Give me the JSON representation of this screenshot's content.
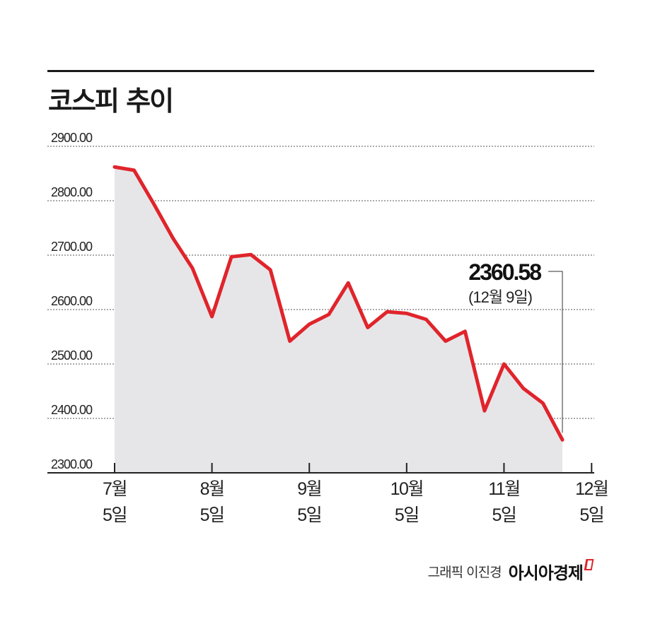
{
  "title": "코스피 추이",
  "credit": {
    "text": "그래픽 이진경",
    "brand": "아시아경제",
    "brand_color": "#e0242b"
  },
  "chart_data": {
    "type": "area",
    "title": "코스피 추이",
    "line_color": "#e0242b",
    "fill_color": "#e6e6e9",
    "grid": true,
    "ylim": [
      2300,
      2900
    ],
    "yticks": [
      "2900.00",
      "2800.00",
      "2700.00",
      "2600.00",
      "2500.00",
      "2400.00",
      "2300.00"
    ],
    "xticks": [
      {
        "month": "7월",
        "day": "5일",
        "index": 0
      },
      {
        "month": "8월",
        "day": "5일",
        "index": 5
      },
      {
        "month": "9월",
        "day": "5일",
        "index": 10
      },
      {
        "month": "10월",
        "day": "5일",
        "index": 15
      },
      {
        "month": "11월",
        "day": "5일",
        "index": 20
      },
      {
        "month": "12월",
        "day": "5일",
        "index": 24.5
      }
    ],
    "values": [
      2862,
      2856,
      2795,
      2731,
      2676,
      2587,
      2697,
      2701,
      2673,
      2542,
      2573,
      2591,
      2649,
      2567,
      2596,
      2593,
      2582,
      2542,
      2560,
      2414,
      2500,
      2455,
      2428,
      2360.58
    ],
    "annotation": {
      "value": "2360.58",
      "date": "(12월 9일)"
    }
  }
}
